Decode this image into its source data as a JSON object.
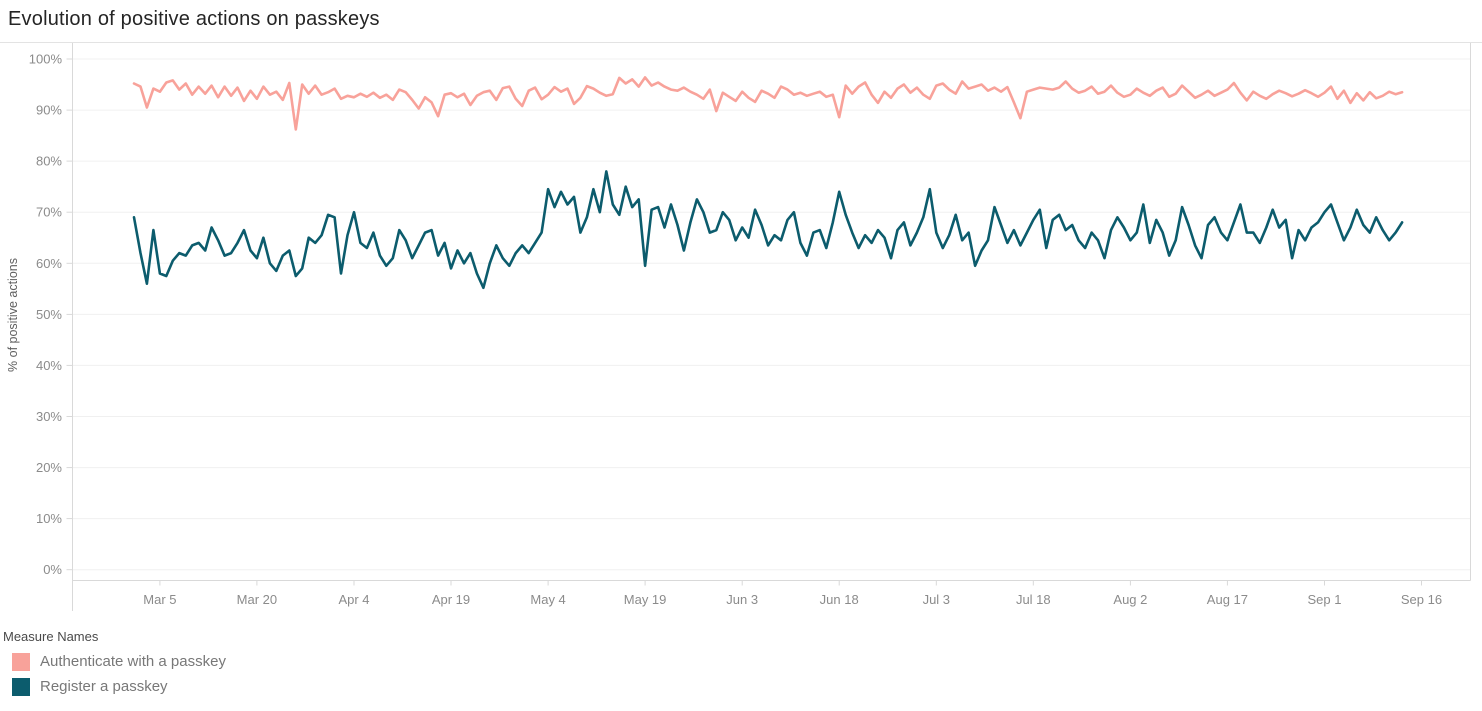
{
  "header": {
    "title": "Evolution of positive actions on passkeys"
  },
  "colors": {
    "gridline": "#f0f0f0",
    "axis_line": "#d9d9d9",
    "tick_mark": "#d9d9d9",
    "tick_label": "#8b8b8b",
    "axis_title": "#5f5f5f",
    "title_text": "#252525",
    "authenticate_pink": "#F8A29A",
    "register_teal": "#0C5C6D"
  },
  "legend": {
    "title": "Measure Names"
  },
  "chart_data": {
    "type": "line",
    "title": "Evolution of positive actions on passkeys",
    "xlabel": "",
    "ylabel": "% of positive actions",
    "ylim": [
      0,
      100
    ],
    "grid": true,
    "legend_position": "bottom-left",
    "x_start_date": "Mar 1",
    "x_end_date": "Sep 13",
    "x_unit": "day",
    "y_tick_labels": [
      "0%",
      "10%",
      "20%",
      "30%",
      "40%",
      "50%",
      "60%",
      "70%",
      "80%",
      "90%",
      "100%"
    ],
    "x_ticks": [
      {
        "label": "Mar 5",
        "day": 4
      },
      {
        "label": "Mar 20",
        "day": 19
      },
      {
        "label": "Apr 4",
        "day": 34
      },
      {
        "label": "Apr 19",
        "day": 49
      },
      {
        "label": "May 4",
        "day": 64
      },
      {
        "label": "May 19",
        "day": 79
      },
      {
        "label": "Jun 3",
        "day": 94
      },
      {
        "label": "Jun 18",
        "day": 109
      },
      {
        "label": "Jul 3",
        "day": 124
      },
      {
        "label": "Jul 18",
        "day": 139
      },
      {
        "label": "Aug 2",
        "day": 154
      },
      {
        "label": "Aug 17",
        "day": 169
      },
      {
        "label": "Sep 1",
        "day": 184
      },
      {
        "label": "Sep 16",
        "day": 199
      }
    ],
    "series": [
      {
        "name": "Authenticate with a passkey",
        "color": "#F8A29A",
        "values": [
          95.2,
          94.6,
          90.5,
          94.2,
          93.6,
          95.4,
          95.8,
          94.0,
          95.2,
          93.0,
          94.6,
          93.2,
          94.8,
          92.5,
          94.6,
          92.8,
          94.4,
          91.8,
          93.8,
          92.2,
          94.6,
          93.0,
          93.6,
          92.0,
          95.3,
          86.2,
          95.0,
          93.2,
          94.8,
          93.0,
          93.5,
          94.2,
          92.2,
          92.8,
          92.5,
          93.2,
          92.6,
          93.4,
          92.4,
          93.0,
          92.0,
          94.0,
          93.5,
          92.0,
          90.3,
          92.5,
          91.5,
          88.8,
          93.0,
          93.3,
          92.5,
          93.2,
          91.0,
          92.8,
          93.5,
          93.8,
          92.0,
          94.3,
          94.6,
          92.2,
          90.8,
          93.8,
          94.4,
          92.1,
          93.0,
          94.5,
          93.6,
          94.2,
          91.2,
          92.4,
          94.7,
          94.2,
          93.4,
          92.8,
          93.1,
          96.3,
          95.2,
          96.0,
          94.6,
          96.4,
          94.8,
          95.4,
          94.6,
          94.0,
          93.8,
          94.4,
          93.6,
          93.0,
          92.2,
          94.0,
          89.8,
          93.4,
          92.6,
          91.8,
          93.6,
          92.4,
          91.6,
          93.8,
          93.2,
          92.4,
          94.6,
          94.0,
          93.0,
          93.4,
          92.8,
          93.2,
          93.6,
          92.6,
          93.0,
          88.6,
          94.8,
          93.2,
          94.6,
          95.4,
          93.0,
          91.4,
          93.6,
          92.4,
          94.2,
          95.0,
          93.4,
          94.4,
          93.0,
          92.2,
          94.8,
          95.2,
          94.0,
          93.2,
          95.6,
          94.2,
          94.6,
          95.0,
          93.8,
          94.4,
          93.6,
          94.5,
          91.5,
          88.4,
          93.6,
          94.0,
          94.4,
          94.2,
          94.0,
          94.4,
          95.6,
          94.2,
          93.4,
          93.8,
          94.6,
          93.2,
          93.6,
          94.8,
          93.4,
          92.6,
          93.0,
          94.2,
          93.4,
          92.8,
          93.8,
          94.4,
          92.6,
          93.2,
          94.8,
          93.6,
          92.4,
          93.0,
          93.8,
          92.8,
          93.4,
          94.0,
          95.3,
          93.4,
          91.9,
          93.6,
          92.8,
          92.2,
          93.1,
          93.8,
          93.3,
          92.7,
          93.2,
          93.9,
          93.3,
          92.6,
          93.4,
          94.6,
          92.2,
          93.8,
          91.4,
          93.3,
          91.9,
          93.5,
          92.3,
          92.8,
          93.6,
          93.1,
          93.5
        ]
      },
      {
        "name": "Register a passkey",
        "color": "#0C5C6D",
        "values": [
          69.0,
          62.0,
          56.0,
          66.5,
          58.0,
          57.5,
          60.5,
          62.0,
          61.5,
          63.5,
          64.0,
          62.5,
          67.0,
          64.5,
          61.5,
          62.0,
          64.0,
          66.5,
          62.5,
          61.0,
          65.0,
          60.0,
          58.5,
          61.5,
          62.5,
          57.5,
          59.0,
          65.0,
          64.0,
          65.5,
          69.5,
          69.0,
          58.0,
          65.5,
          70.0,
          64.0,
          63.0,
          66.0,
          61.5,
          59.5,
          61.0,
          66.5,
          64.5,
          61.0,
          63.5,
          66.0,
          66.5,
          61.5,
          64.0,
          59.0,
          62.5,
          60.0,
          62.0,
          58.0,
          55.2,
          60.0,
          63.5,
          61.0,
          59.5,
          62.0,
          63.5,
          62.0,
          64.0,
          66.0,
          74.5,
          71.0,
          74.0,
          71.5,
          73.0,
          66.0,
          69.0,
          74.5,
          70.0,
          78.0,
          71.5,
          69.5,
          75.0,
          71.0,
          72.5,
          59.5,
          70.5,
          71.0,
          67.0,
          71.5,
          67.5,
          62.5,
          68.0,
          72.5,
          70.0,
          66.0,
          66.5,
          70.0,
          68.5,
          64.5,
          67.0,
          65.0,
          70.5,
          67.5,
          63.5,
          65.5,
          64.5,
          68.5,
          70.0,
          64.0,
          61.5,
          66.0,
          66.5,
          63.0,
          68.0,
          74.0,
          69.5,
          66.0,
          63.0,
          65.5,
          64.0,
          66.5,
          65.0,
          61.0,
          66.5,
          68.0,
          63.5,
          66.0,
          69.0,
          74.5,
          66.0,
          63.0,
          65.5,
          69.5,
          64.5,
          66.0,
          59.5,
          62.5,
          64.5,
          71.0,
          67.5,
          64.0,
          66.5,
          63.5,
          66.0,
          68.5,
          70.5,
          63.0,
          68.5,
          69.5,
          66.5,
          67.5,
          64.5,
          63.0,
          66.0,
          64.5,
          61.0,
          66.5,
          69.0,
          67.0,
          64.5,
          66.0,
          71.5,
          64.0,
          68.5,
          66.0,
          61.5,
          64.5,
          71.0,
          67.5,
          63.5,
          61.0,
          67.5,
          69.0,
          66.0,
          64.5,
          68.0,
          71.5,
          66.0,
          66.0,
          64.0,
          67.0,
          70.5,
          67.0,
          68.5,
          61.0,
          66.5,
          64.5,
          67.0,
          68.0,
          70.0,
          71.5,
          68.0,
          64.5,
          67.0,
          70.5,
          67.5,
          66.0,
          69.0,
          66.5,
          64.5,
          66.0,
          68.0
        ]
      }
    ]
  }
}
